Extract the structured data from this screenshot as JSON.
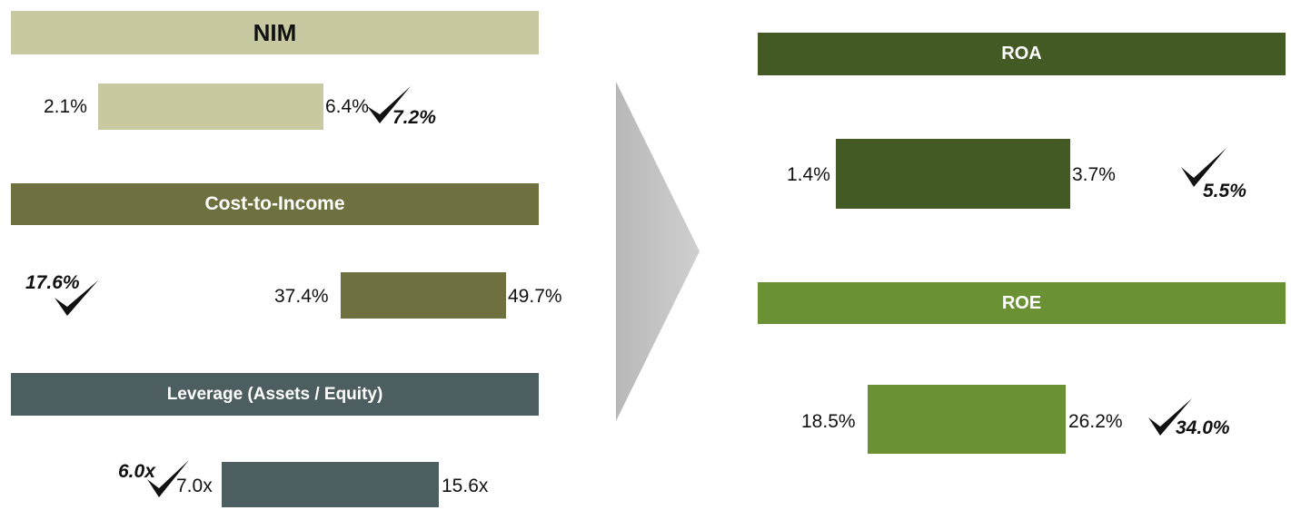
{
  "colors": {
    "nim": "#c8c9a0",
    "cost": "#6e7040",
    "leverage": "#4d5e60",
    "roa": "#435a24",
    "roe": "#6a9134",
    "arrow": "#c4c4c4"
  },
  "nim": {
    "title": "NIM",
    "low": "2.1%",
    "high": "6.4%",
    "target": "7.2%"
  },
  "cost": {
    "title": "Cost-to-Income",
    "low": "37.4%",
    "high": "49.7%",
    "target": "17.6%"
  },
  "leverage": {
    "title": "Leverage (Assets / Equity)",
    "low": "7.0x",
    "high": "15.6x",
    "target": "6.0x"
  },
  "roa": {
    "title": "ROA",
    "low": "1.4%",
    "high": "3.7%",
    "target": "5.5%"
  },
  "roe": {
    "title": "ROE",
    "low": "18.5%",
    "high": "26.2%",
    "target": "34.0%"
  }
}
